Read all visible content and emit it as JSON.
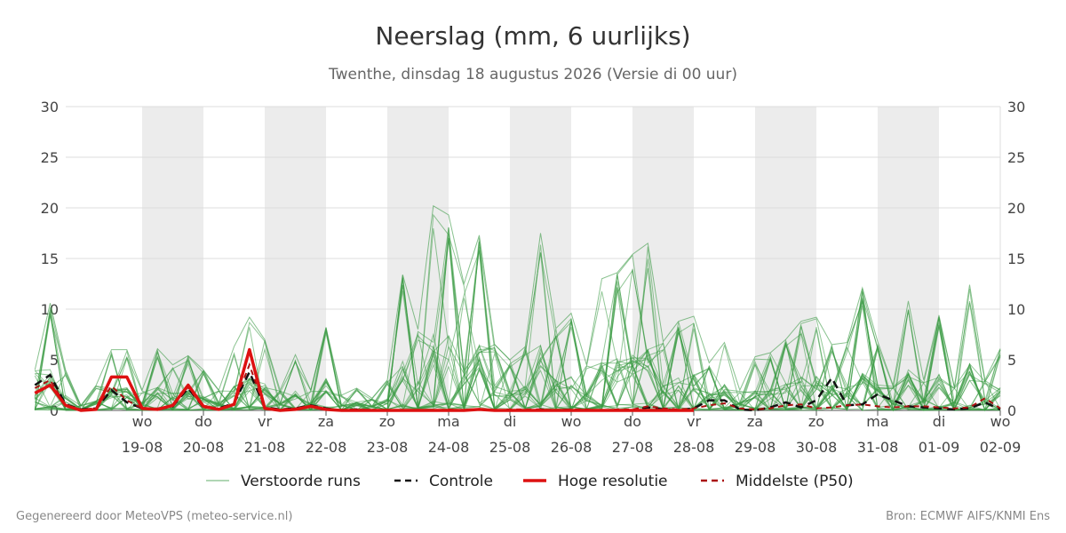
{
  "title": "Neerslag (mm, 6 uurlijks)",
  "subtitle": "Twenthe, dinsdag 18 augustus 2026 (Versie di 00 uur)",
  "footer_left": "Gegenereerd door MeteoVPS (meteo-service.nl)",
  "footer_right": "Bron: ECMWF AIFS/KNMI Ens",
  "colors": {
    "ensemble": "#3a9a44",
    "controle": "#111111",
    "hoge_resolutie": "#dd1111",
    "p50": "#aa1111",
    "weekend_band": "#ececec",
    "grid": "#dddddd"
  },
  "chart_data": {
    "type": "line",
    "x_unit": "days since 18-08 00 uur",
    "xlim": [
      -0.75,
      15.0
    ],
    "ylim": [
      0,
      30
    ],
    "yticks": [
      0,
      5,
      10,
      15,
      20,
      25,
      30
    ],
    "grid": true,
    "legend_position": "bottom",
    "x_ticks": [
      {
        "day": 1,
        "weekday": "wo",
        "date": "19-08"
      },
      {
        "day": 2,
        "weekday": "do",
        "date": "20-08"
      },
      {
        "day": 3,
        "weekday": "vr",
        "date": "21-08"
      },
      {
        "day": 4,
        "weekday": "za",
        "date": "22-08"
      },
      {
        "day": 5,
        "weekday": "zo",
        "date": "23-08"
      },
      {
        "day": 6,
        "weekday": "ma",
        "date": "24-08"
      },
      {
        "day": 7,
        "weekday": "di",
        "date": "25-08"
      },
      {
        "day": 8,
        "weekday": "wo",
        "date": "26-08"
      },
      {
        "day": 9,
        "weekday": "do",
        "date": "27-08"
      },
      {
        "day": 10,
        "weekday": "vr",
        "date": "28-08"
      },
      {
        "day": 11,
        "weekday": "za",
        "date": "29-08"
      },
      {
        "day": 12,
        "weekday": "zo",
        "date": "30-08"
      },
      {
        "day": 13,
        "weekday": "ma",
        "date": "31-08"
      },
      {
        "day": 14,
        "weekday": "di",
        "date": "01-09"
      },
      {
        "day": 15,
        "weekday": "wo",
        "date": "02-09"
      }
    ],
    "shaded_days": [
      [
        1,
        2
      ],
      [
        3,
        4
      ],
      [
        5,
        6
      ],
      [
        7,
        8
      ],
      [
        9,
        10
      ],
      [
        11,
        12
      ],
      [
        13,
        14
      ]
    ],
    "legend": [
      {
        "key": "ensemble",
        "label": "Verstoorde runs",
        "style": "thin"
      },
      {
        "key": "controle",
        "label": "Controle",
        "style": "dashed"
      },
      {
        "key": "hoge_resolutie",
        "label": "Hoge resolutie",
        "style": "thick"
      },
      {
        "key": "p50",
        "label": "Middelste (P50)",
        "style": "dashed"
      }
    ],
    "series": [
      {
        "name": "Hoge resolutie",
        "x": [
          -0.75,
          -0.5,
          -0.25,
          0.0,
          0.25,
          0.5,
          0.75,
          1.0,
          1.25,
          1.5,
          1.75,
          2.0,
          2.25,
          2.5,
          2.75,
          3.0,
          3.25,
          3.5,
          3.75,
          4.0,
          4.25,
          4.5,
          4.75,
          5.0,
          5.25,
          5.5,
          5.75,
          6.0,
          6.25,
          6.5,
          6.75,
          7.0,
          7.25,
          7.5,
          7.75,
          8.0,
          8.25,
          8.5,
          8.75,
          9.0,
          9.25,
          9.5,
          9.75,
          10.0
        ],
        "values": [
          1.7,
          2.5,
          0.5,
          0.0,
          0.1,
          3.3,
          3.3,
          0.2,
          0.1,
          0.5,
          2.5,
          0.4,
          0.1,
          0.6,
          6.0,
          0.2,
          0.0,
          0.1,
          0.4,
          0.1,
          0.0,
          0.0,
          0.0,
          0.0,
          0.0,
          0.0,
          0.0,
          0.0,
          0.0,
          0.1,
          0.0,
          0.0,
          0.0,
          0.0,
          0.0,
          0.0,
          0.0,
          0.0,
          0.0,
          0.0,
          0.0,
          0.0,
          0.0,
          0.0
        ]
      },
      {
        "name": "Controle",
        "x": [
          -0.75,
          -0.5,
          -0.25,
          0.0,
          0.25,
          0.5,
          0.75,
          1.0,
          1.25,
          1.5,
          1.75,
          2.0,
          2.25,
          2.5,
          2.75,
          3.0,
          3.25,
          3.5,
          3.75,
          4.0,
          4.25,
          4.5,
          4.75,
          5.0,
          5.25,
          5.5,
          5.75,
          6.0,
          6.25,
          6.5,
          6.75,
          7.0,
          7.25,
          7.5,
          7.75,
          8.0,
          8.25,
          8.5,
          8.75,
          9.0,
          9.25,
          9.5,
          9.75,
          10.0,
          10.25,
          10.5,
          10.75,
          11.0,
          11.25,
          11.5,
          11.75,
          12.0,
          12.25,
          12.5,
          12.75,
          13.0,
          13.25,
          13.5,
          13.75,
          14.0,
          14.25,
          14.5,
          14.75,
          15.0
        ],
        "values": [
          2.5,
          3.5,
          0.6,
          0.1,
          0.2,
          2.0,
          0.8,
          0.2,
          0.1,
          0.4,
          2.2,
          0.3,
          0.2,
          0.7,
          3.8,
          0.3,
          0.1,
          0.2,
          0.5,
          0.2,
          0.0,
          0.1,
          0.0,
          0.0,
          0.0,
          0.0,
          0.0,
          0.0,
          0.0,
          0.1,
          0.0,
          0.0,
          0.0,
          0.1,
          0.0,
          0.1,
          0.0,
          0.0,
          0.0,
          0.0,
          0.3,
          0.1,
          0.0,
          0.2,
          1.0,
          1.0,
          0.1,
          0.0,
          0.3,
          0.8,
          0.3,
          1.0,
          3.2,
          0.5,
          0.6,
          1.6,
          1.0,
          0.4,
          0.3,
          0.2,
          0.1,
          0.2,
          0.8,
          0.1
        ]
      },
      {
        "name": "Middelste (P50)",
        "x": [
          -0.75,
          -0.5,
          -0.25,
          0.0,
          0.25,
          0.5,
          0.75,
          1.0,
          1.25,
          1.5,
          1.75,
          2.0,
          2.25,
          2.5,
          2.75,
          3.0,
          3.25,
          3.5,
          3.75,
          4.0,
          4.25,
          4.5,
          4.75,
          5.0,
          5.25,
          5.5,
          5.75,
          6.0,
          6.25,
          6.5,
          6.75,
          7.0,
          7.25,
          7.5,
          7.75,
          8.0,
          8.25,
          8.5,
          8.75,
          9.0,
          9.25,
          9.5,
          9.75,
          10.0,
          10.25,
          10.5,
          10.75,
          11.0,
          11.25,
          11.5,
          11.75,
          12.0,
          12.25,
          12.5,
          12.75,
          13.0,
          13.25,
          13.5,
          13.75,
          14.0,
          14.25,
          14.5,
          14.75,
          15.0
        ],
        "values": [
          2.2,
          3.0,
          0.5,
          0.1,
          0.2,
          2.4,
          1.0,
          0.2,
          0.2,
          0.5,
          2.3,
          0.3,
          0.1,
          0.6,
          4.5,
          0.2,
          0.1,
          0.2,
          0.4,
          0.1,
          0.0,
          0.1,
          0.0,
          0.0,
          0.0,
          0.0,
          0.0,
          0.1,
          0.0,
          0.1,
          0.0,
          0.1,
          0.1,
          0.1,
          0.0,
          0.1,
          0.1,
          0.0,
          0.1,
          0.1,
          0.4,
          0.2,
          0.1,
          0.2,
          0.5,
          0.7,
          0.2,
          0.1,
          0.2,
          0.5,
          0.6,
          0.2,
          0.3,
          0.5,
          0.6,
          0.4,
          0.3,
          0.4,
          0.4,
          0.3,
          0.2,
          0.3,
          1.2,
          0.2
        ]
      }
    ],
    "ensemble_envelope": {
      "x": [
        -0.75,
        -0.5,
        -0.25,
        0.0,
        0.25,
        0.5,
        0.75,
        1.0,
        1.25,
        1.5,
        1.75,
        2.0,
        2.25,
        2.5,
        2.75,
        3.0,
        3.25,
        3.5,
        3.75,
        4.0,
        4.25,
        4.5,
        4.75,
        5.0,
        5.25,
        5.5,
        5.75,
        6.0,
        6.25,
        6.5,
        6.75,
        7.0,
        7.25,
        7.5,
        7.75,
        8.0,
        8.25,
        8.5,
        8.75,
        9.0,
        9.25,
        9.5,
        9.75,
        10.0,
        10.25,
        10.5,
        10.75,
        11.0,
        11.25,
        11.5,
        11.75,
        12.0,
        12.25,
        12.5,
        12.75,
        13.0,
        13.25,
        13.5,
        13.75,
        14.0,
        14.25,
        14.5,
        14.75,
        15.0
      ],
      "max": [
        4.0,
        10.6,
        4.0,
        0.5,
        2.5,
        6.0,
        6.0,
        2.0,
        6.1,
        4.5,
        5.4,
        4.0,
        2.0,
        6.3,
        9.2,
        7.0,
        2.0,
        5.5,
        2.0,
        8.2,
        1.5,
        2.2,
        1.2,
        3.0,
        13.4,
        8.0,
        20.2,
        19.3,
        12.5,
        17.3,
        6.5,
        5.0,
        6.3,
        17.5,
        8.1,
        9.6,
        4.5,
        13.0,
        13.6,
        15.4,
        16.5,
        6.8,
        8.8,
        9.3,
        4.7,
        6.7,
        2.0,
        5.3,
        5.7,
        7.0,
        8.8,
        9.2,
        6.5,
        6.7,
        12.1,
        6.8,
        2.5,
        10.8,
        3.0,
        9.4,
        2.3,
        12.4,
        3.0,
        6.1
      ]
    }
  }
}
